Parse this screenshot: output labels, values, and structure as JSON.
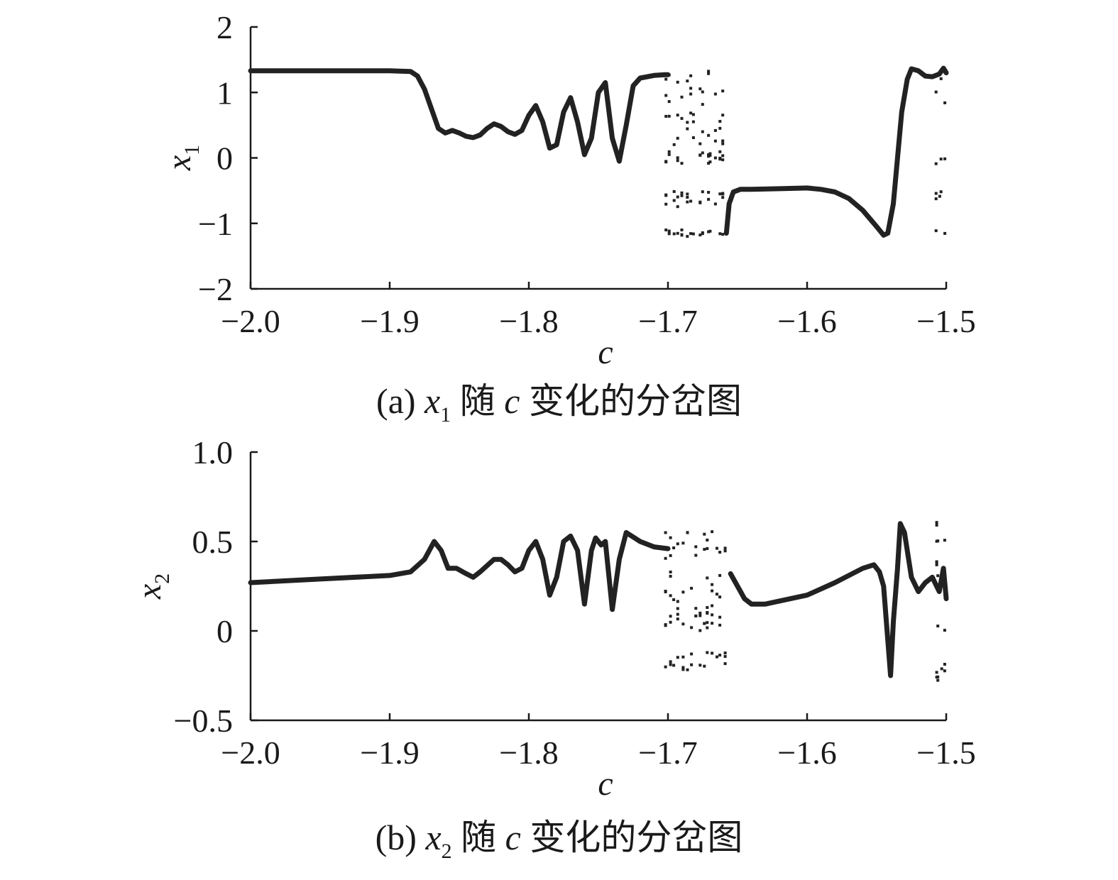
{
  "chart_data": [
    {
      "type": "scatter",
      "panel": "a",
      "xlabel": "c",
      "ylabel": "x1",
      "xlim": [
        -2.0,
        -1.5
      ],
      "ylim": [
        -2,
        2
      ],
      "x_ticks": [
        "−2.0",
        "−1.9",
        "−1.8",
        "−1.7",
        "−1.6",
        "−1.5"
      ],
      "y_ticks": [
        "2",
        "1",
        "0",
        "−1",
        "−2"
      ],
      "caption": {
        "prefix": "(a) ",
        "var": "x",
        "sub": "1",
        "mid": " 随 ",
        "cvar": "c",
        "suffix": " 变化的分岔图"
      },
      "curve": [
        [
          -2.0,
          1.33
        ],
        [
          -1.95,
          1.33
        ],
        [
          -1.9,
          1.33
        ],
        [
          -1.885,
          1.32
        ],
        [
          -1.88,
          1.25
        ],
        [
          -1.875,
          1.05
        ],
        [
          -1.87,
          0.75
        ],
        [
          -1.865,
          0.45
        ],
        [
          -1.86,
          0.38
        ],
        [
          -1.855,
          0.42
        ],
        [
          -1.85,
          0.38
        ],
        [
          -1.845,
          0.33
        ],
        [
          -1.84,
          0.31
        ],
        [
          -1.835,
          0.35
        ],
        [
          -1.83,
          0.45
        ],
        [
          -1.825,
          0.52
        ],
        [
          -1.82,
          0.48
        ],
        [
          -1.815,
          0.4
        ],
        [
          -1.81,
          0.36
        ],
        [
          -1.805,
          0.42
        ],
        [
          -1.8,
          0.65
        ],
        [
          -1.795,
          0.8
        ],
        [
          -1.79,
          0.55
        ],
        [
          -1.785,
          0.15
        ],
        [
          -1.78,
          0.2
        ],
        [
          -1.775,
          0.7
        ],
        [
          -1.77,
          0.92
        ],
        [
          -1.765,
          0.55
        ],
        [
          -1.76,
          0.05
        ],
        [
          -1.755,
          0.3
        ],
        [
          -1.75,
          1.0
        ],
        [
          -1.745,
          1.15
        ],
        [
          -1.74,
          0.3
        ],
        [
          -1.735,
          -0.05
        ],
        [
          -1.73,
          0.5
        ],
        [
          -1.725,
          1.1
        ],
        [
          -1.72,
          1.22
        ],
        [
          -1.71,
          1.26
        ],
        [
          -1.702,
          1.27
        ],
        [
          -1.7,
          1.27
        ]
      ],
      "curve2": [
        [
          -1.658,
          -1.15
        ],
        [
          -1.656,
          -0.7
        ],
        [
          -1.653,
          -0.52
        ],
        [
          -1.648,
          -0.48
        ],
        [
          -1.64,
          -0.48
        ],
        [
          -1.62,
          -0.47
        ],
        [
          -1.6,
          -0.46
        ],
        [
          -1.59,
          -0.48
        ],
        [
          -1.58,
          -0.52
        ],
        [
          -1.57,
          -0.62
        ],
        [
          -1.56,
          -0.8
        ],
        [
          -1.55,
          -1.05
        ],
        [
          -1.545,
          -1.18
        ],
        [
          -1.542,
          -1.15
        ],
        [
          -1.538,
          -0.7
        ],
        [
          -1.535,
          0.0
        ],
        [
          -1.532,
          0.7
        ],
        [
          -1.528,
          1.2
        ],
        [
          -1.525,
          1.36
        ],
        [
          -1.52,
          1.33
        ],
        [
          -1.515,
          1.25
        ],
        [
          -1.51,
          1.24
        ],
        [
          -1.505,
          1.28
        ],
        [
          -1.502,
          1.37
        ],
        [
          -1.5,
          1.3
        ]
      ],
      "scatter_bands": [
        {
          "x": [
            -1.703,
            -1.658
          ],
          "y_clusters": [
            [
              -1.2,
              -1.1
            ],
            [
              -0.75,
              -0.5
            ],
            [
              -0.1,
              0.1
            ],
            [
              0.2,
              0.7
            ],
            [
              0.8,
              1.35
            ]
          ]
        },
        {
          "x": [
            -1.508,
            -1.5
          ],
          "y_clusters": [
            [
              -1.2,
              -1.0
            ],
            [
              -0.7,
              -0.5
            ],
            [
              -0.1,
              0.1
            ],
            [
              0.8,
              1.3
            ]
          ]
        }
      ]
    },
    {
      "type": "scatter",
      "panel": "b",
      "xlabel": "c",
      "ylabel": "x2",
      "xlim": [
        -2.0,
        -1.5
      ],
      "ylim": [
        -0.5,
        1.0
      ],
      "x_ticks": [
        "−2.0",
        "−1.9",
        "−1.8",
        "−1.7",
        "−1.6",
        "−1.5"
      ],
      "y_ticks": [
        "1.0",
        "0.5",
        "0",
        "−0.5"
      ],
      "caption": {
        "prefix": "(b) ",
        "var": "x",
        "sub": "2",
        "mid": " 随 ",
        "cvar": "c",
        "suffix": " 变化的分岔图"
      },
      "curve": [
        [
          -2.0,
          0.27
        ],
        [
          -1.95,
          0.29
        ],
        [
          -1.9,
          0.31
        ],
        [
          -1.885,
          0.33
        ],
        [
          -1.875,
          0.4
        ],
        [
          -1.868,
          0.5
        ],
        [
          -1.863,
          0.45
        ],
        [
          -1.858,
          0.35
        ],
        [
          -1.852,
          0.35
        ],
        [
          -1.845,
          0.32
        ],
        [
          -1.84,
          0.3
        ],
        [
          -1.835,
          0.33
        ],
        [
          -1.825,
          0.4
        ],
        [
          -1.82,
          0.4
        ],
        [
          -1.815,
          0.37
        ],
        [
          -1.81,
          0.33
        ],
        [
          -1.805,
          0.35
        ],
        [
          -1.8,
          0.45
        ],
        [
          -1.795,
          0.5
        ],
        [
          -1.79,
          0.4
        ],
        [
          -1.785,
          0.2
        ],
        [
          -1.78,
          0.3
        ],
        [
          -1.775,
          0.5
        ],
        [
          -1.77,
          0.53
        ],
        [
          -1.765,
          0.45
        ],
        [
          -1.76,
          0.15
        ],
        [
          -1.755,
          0.45
        ],
        [
          -1.752,
          0.52
        ],
        [
          -1.748,
          0.48
        ],
        [
          -1.745,
          0.5
        ],
        [
          -1.74,
          0.12
        ],
        [
          -1.735,
          0.4
        ],
        [
          -1.73,
          0.55
        ],
        [
          -1.72,
          0.5
        ],
        [
          -1.71,
          0.47
        ],
        [
          -1.7,
          0.46
        ]
      ],
      "curve2": [
        [
          -1.655,
          0.32
        ],
        [
          -1.65,
          0.25
        ],
        [
          -1.645,
          0.18
        ],
        [
          -1.64,
          0.15
        ],
        [
          -1.63,
          0.15
        ],
        [
          -1.6,
          0.2
        ],
        [
          -1.58,
          0.27
        ],
        [
          -1.56,
          0.35
        ],
        [
          -1.552,
          0.37
        ],
        [
          -1.548,
          0.33
        ],
        [
          -1.545,
          0.25
        ],
        [
          -1.543,
          0.05
        ],
        [
          -1.54,
          -0.25
        ],
        [
          -1.538,
          0.05
        ],
        [
          -1.535,
          0.35
        ],
        [
          -1.533,
          0.6
        ],
        [
          -1.53,
          0.55
        ],
        [
          -1.525,
          0.3
        ],
        [
          -1.52,
          0.22
        ],
        [
          -1.515,
          0.27
        ],
        [
          -1.51,
          0.3
        ],
        [
          -1.505,
          0.22
        ],
        [
          -1.502,
          0.35
        ],
        [
          -1.5,
          0.18
        ]
      ],
      "scatter_bands": [
        {
          "x": [
            -1.703,
            -1.658
          ],
          "y_clusters": [
            [
              -0.22,
              -0.12
            ],
            [
              0.0,
              0.1
            ],
            [
              0.1,
              0.35
            ],
            [
              0.4,
              0.57
            ]
          ]
        },
        {
          "x": [
            -1.508,
            -1.5
          ],
          "y_clusters": [
            [
              -0.28,
              -0.18
            ],
            [
              0.0,
              0.1
            ],
            [
              0.25,
              0.4
            ],
            [
              0.5,
              0.62
            ]
          ]
        }
      ]
    }
  ]
}
